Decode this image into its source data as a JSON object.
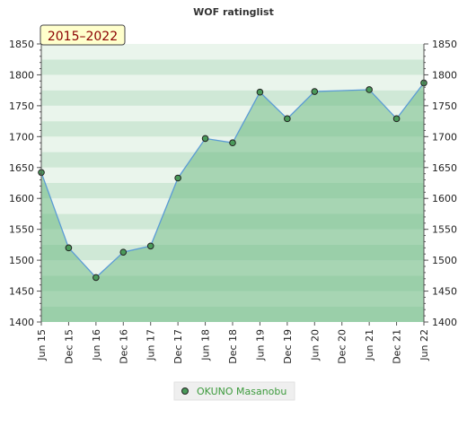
{
  "chart_data": {
    "type": "area",
    "title": "WOF ratinglist",
    "badge": "2015–2022",
    "xlabel": "",
    "ylabel": "",
    "ylim": [
      1400,
      1850
    ],
    "yticks": [
      1400,
      1450,
      1500,
      1550,
      1600,
      1650,
      1700,
      1750,
      1800,
      1850
    ],
    "categories": [
      "Jun 15",
      "Dec 15",
      "Jun 16",
      "Dec 16",
      "Jun 17",
      "Dec 17",
      "Jun 18",
      "Dec 18",
      "Jun 19",
      "Dec 19",
      "Jun 20",
      "Dec 20",
      "Jun 21",
      "Dec 21",
      "Jun 22"
    ],
    "series": [
      {
        "name": "OKUNO Masanobu",
        "values": [
          1642,
          1520,
          1472,
          1513,
          1523,
          1633,
          1697,
          1690,
          1772,
          1729,
          1773,
          null,
          1776,
          1729,
          1787
        ]
      }
    ],
    "legend_position": "bottom-center",
    "grid": "horizontal bands",
    "colors": {
      "line": "#5b9bd5",
      "fill": "#6fba85",
      "marker": "#4a9a5a",
      "band_dark": "#cfe8d6",
      "band_light": "#eaf5ec",
      "badge_bg": "#ffffcc",
      "badge_text": "#8b0000",
      "legend_text": "#3c9a3c"
    }
  }
}
